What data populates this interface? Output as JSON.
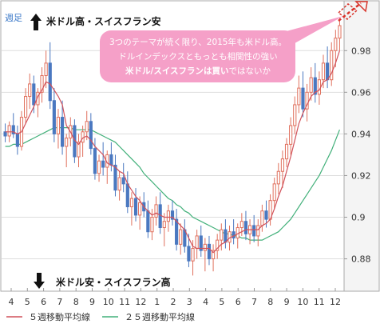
{
  "chart_data": {
    "type": "candlestick",
    "timeframe_label": "週足",
    "title_up": "米ドル高・スイスフラン安",
    "title_down": "米ドル安・スイスフラン高",
    "callout": {
      "line1": "3つのテーマが続く限り、2015年も米ドル高。",
      "line2": "ドルインデックスともっとも相関性の強い",
      "line3_bold": "米ドル/スイスフランは買い",
      "line3_rest": "ではないか"
    },
    "y_ticks": [
      "0.98",
      "0.96",
      "0.94",
      "0.92",
      "0.9",
      "0.88"
    ],
    "y_tick_values": [
      0.98,
      0.96,
      0.94,
      0.92,
      0.9,
      0.88
    ],
    "ylim": [
      0.866,
      1.002
    ],
    "x_labels": [
      "4",
      "5",
      "6",
      "7",
      "8",
      "9",
      "10",
      "11",
      "12",
      "1",
      "2",
      "3",
      "4",
      "5",
      "6",
      "7",
      "8",
      "9",
      "10",
      "11",
      "12"
    ],
    "legend": [
      {
        "label": "５週移動平均線",
        "color": "#d1515a"
      },
      {
        "label": "２５週移動平均線",
        "color": "#42b07a"
      }
    ],
    "colors": {
      "up": "#e0705d",
      "down": "#4a78c0",
      "ma5": "#d1515a",
      "ma25": "#42b07a",
      "callout_bg": "#f5a0c8",
      "axis": "#999999",
      "grid": "#dddddd"
    },
    "candles": [
      [
        0.941,
        0.945,
        0.936,
        0.939
      ],
      [
        0.939,
        0.946,
        0.936,
        0.944
      ],
      [
        0.944,
        0.95,
        0.938,
        0.94
      ],
      [
        0.94,
        0.944,
        0.93,
        0.934
      ],
      [
        0.934,
        0.951,
        0.932,
        0.948
      ],
      [
        0.948,
        0.962,
        0.945,
        0.958
      ],
      [
        0.958,
        0.969,
        0.952,
        0.964
      ],
      [
        0.964,
        0.968,
        0.95,
        0.954
      ],
      [
        0.954,
        0.962,
        0.948,
        0.96
      ],
      [
        0.96,
        0.972,
        0.955,
        0.968
      ],
      [
        0.968,
        0.98,
        0.962,
        0.974
      ],
      [
        0.974,
        0.984,
        0.952,
        0.956
      ],
      [
        0.956,
        0.962,
        0.936,
        0.94
      ],
      [
        0.94,
        0.952,
        0.933,
        0.948
      ],
      [
        0.948,
        0.956,
        0.93,
        0.934
      ],
      [
        0.934,
        0.94,
        0.924,
        0.938
      ],
      [
        0.938,
        0.948,
        0.934,
        0.944
      ],
      [
        0.944,
        0.947,
        0.926,
        0.929
      ],
      [
        0.929,
        0.94,
        0.924,
        0.936
      ],
      [
        0.936,
        0.944,
        0.929,
        0.941
      ],
      [
        0.941,
        0.951,
        0.937,
        0.946
      ],
      [
        0.946,
        0.95,
        0.93,
        0.933
      ],
      [
        0.933,
        0.938,
        0.918,
        0.921
      ],
      [
        0.921,
        0.93,
        0.917,
        0.927
      ],
      [
        0.927,
        0.936,
        0.92,
        0.924
      ],
      [
        0.924,
        0.932,
        0.916,
        0.93
      ],
      [
        0.93,
        0.936,
        0.922,
        0.925
      ],
      [
        0.925,
        0.93,
        0.91,
        0.913
      ],
      [
        0.913,
        0.922,
        0.908,
        0.919
      ],
      [
        0.919,
        0.926,
        0.912,
        0.916
      ],
      [
        0.916,
        0.922,
        0.902,
        0.905
      ],
      [
        0.905,
        0.912,
        0.896,
        0.909
      ],
      [
        0.909,
        0.914,
        0.898,
        0.901
      ],
      [
        0.901,
        0.91,
        0.894,
        0.907
      ],
      [
        0.907,
        0.912,
        0.9,
        0.903
      ],
      [
        0.903,
        0.908,
        0.89,
        0.893
      ],
      [
        0.893,
        0.904,
        0.889,
        0.9
      ],
      [
        0.9,
        0.91,
        0.896,
        0.906
      ],
      [
        0.906,
        0.912,
        0.892,
        0.895
      ],
      [
        0.895,
        0.902,
        0.886,
        0.898
      ],
      [
        0.898,
        0.906,
        0.893,
        0.903
      ],
      [
        0.903,
        0.908,
        0.896,
        0.899
      ],
      [
        0.899,
        0.904,
        0.884,
        0.887
      ],
      [
        0.887,
        0.897,
        0.882,
        0.894
      ],
      [
        0.894,
        0.899,
        0.883,
        0.886
      ],
      [
        0.886,
        0.892,
        0.876,
        0.879
      ],
      [
        0.879,
        0.889,
        0.872,
        0.885
      ],
      [
        0.885,
        0.894,
        0.88,
        0.891
      ],
      [
        0.891,
        0.896,
        0.881,
        0.884
      ],
      [
        0.884,
        0.89,
        0.874,
        0.887
      ],
      [
        0.887,
        0.891,
        0.877,
        0.88
      ],
      [
        0.88,
        0.887,
        0.874,
        0.884
      ],
      [
        0.884,
        0.892,
        0.88,
        0.889
      ],
      [
        0.889,
        0.897,
        0.884,
        0.894
      ],
      [
        0.894,
        0.899,
        0.885,
        0.888
      ],
      [
        0.888,
        0.896,
        0.884,
        0.893
      ],
      [
        0.893,
        0.899,
        0.887,
        0.89
      ],
      [
        0.89,
        0.897,
        0.885,
        0.895
      ],
      [
        0.895,
        0.902,
        0.891,
        0.898
      ],
      [
        0.898,
        0.903,
        0.889,
        0.892
      ],
      [
        0.892,
        0.899,
        0.887,
        0.896
      ],
      [
        0.896,
        0.901,
        0.888,
        0.891
      ],
      [
        0.891,
        0.899,
        0.886,
        0.896
      ],
      [
        0.896,
        0.906,
        0.893,
        0.903
      ],
      [
        0.903,
        0.908,
        0.895,
        0.899
      ],
      [
        0.899,
        0.911,
        0.896,
        0.908
      ],
      [
        0.908,
        0.919,
        0.904,
        0.916
      ],
      [
        0.916,
        0.926,
        0.911,
        0.922
      ],
      [
        0.922,
        0.932,
        0.914,
        0.928
      ],
      [
        0.928,
        0.938,
        0.924,
        0.935
      ],
      [
        0.935,
        0.948,
        0.93,
        0.944
      ],
      [
        0.944,
        0.958,
        0.94,
        0.954
      ],
      [
        0.954,
        0.968,
        0.95,
        0.962
      ],
      [
        0.962,
        0.97,
        0.948,
        0.952
      ],
      [
        0.952,
        0.964,
        0.946,
        0.96
      ],
      [
        0.96,
        0.972,
        0.956,
        0.967
      ],
      [
        0.967,
        0.974,
        0.955,
        0.959
      ],
      [
        0.959,
        0.97,
        0.954,
        0.966
      ],
      [
        0.966,
        0.978,
        0.962,
        0.974
      ],
      [
        0.974,
        0.982,
        0.962,
        0.966
      ],
      [
        0.966,
        0.984,
        0.963,
        0.98
      ],
      [
        0.98,
        0.99,
        0.972,
        0.986
      ],
      [
        0.986,
        0.996,
        0.98,
        0.992
      ]
    ],
    "ma5": [
      0.941,
      0.941,
      0.941,
      0.94,
      0.941,
      0.945,
      0.949,
      0.953,
      0.958,
      0.961,
      0.965,
      0.964,
      0.961,
      0.958,
      0.954,
      0.944,
      0.941,
      0.937,
      0.935,
      0.938,
      0.939,
      0.937,
      0.934,
      0.932,
      0.93,
      0.926,
      0.925,
      0.924,
      0.922,
      0.921,
      0.916,
      0.913,
      0.91,
      0.908,
      0.905,
      0.903,
      0.901,
      0.902,
      0.901,
      0.9,
      0.9,
      0.9,
      0.898,
      0.896,
      0.894,
      0.89,
      0.886,
      0.885,
      0.885,
      0.885,
      0.885,
      0.883,
      0.885,
      0.887,
      0.888,
      0.89,
      0.891,
      0.892,
      0.893,
      0.894,
      0.894,
      0.894,
      0.894,
      0.896,
      0.897,
      0.899,
      0.904,
      0.91,
      0.915,
      0.922,
      0.929,
      0.937,
      0.945,
      0.95,
      0.954,
      0.958,
      0.96,
      0.961,
      0.965,
      0.966,
      0.969,
      0.974,
      0.98
    ],
    "ma25": [
      0.934,
      0.934,
      0.935,
      0.935,
      0.935,
      0.936,
      0.937,
      0.938,
      0.939,
      0.94,
      0.941,
      0.942,
      0.943,
      0.943,
      0.943,
      0.943,
      0.943,
      0.942,
      0.942,
      0.942,
      0.942,
      0.942,
      0.941,
      0.94,
      0.939,
      0.938,
      0.937,
      0.936,
      0.934,
      0.932,
      0.93,
      0.928,
      0.926,
      0.924,
      0.921,
      0.919,
      0.917,
      0.915,
      0.913,
      0.911,
      0.909,
      0.908,
      0.906,
      0.905,
      0.903,
      0.902,
      0.9,
      0.899,
      0.898,
      0.897,
      0.896,
      0.895,
      0.894,
      0.893,
      0.892,
      0.892,
      0.891,
      0.891,
      0.89,
      0.89,
      0.889,
      0.889,
      0.889,
      0.889,
      0.89,
      0.891,
      0.892,
      0.893,
      0.895,
      0.897,
      0.899,
      0.902,
      0.905,
      0.908,
      0.911,
      0.914,
      0.917,
      0.92,
      0.924,
      0.928,
      0.932,
      0.937,
      0.942
    ]
  }
}
